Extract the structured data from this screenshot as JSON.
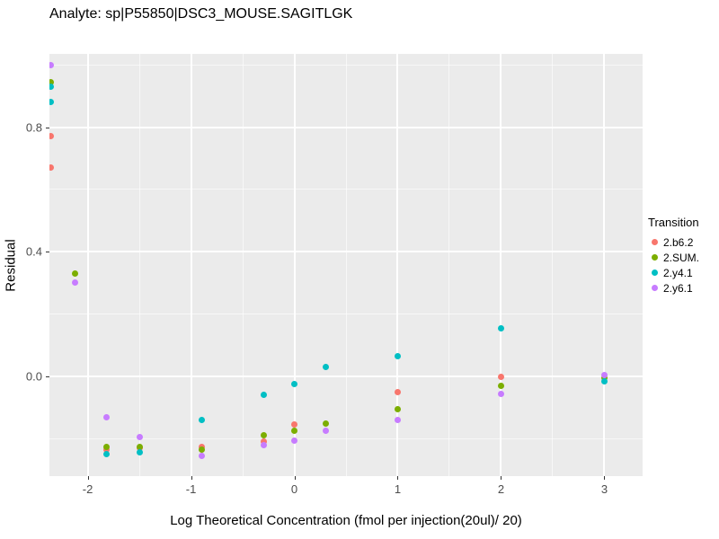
{
  "legend": {
    "title": "Transition"
  },
  "panel_style": {
    "background": "#EBEBEB",
    "grid_color": "#FFFFFF",
    "tick_text_color": "#4D4D4D"
  },
  "chart_data": {
    "type": "scatter",
    "title": "Analyte: sp|P55850|DSC3_MOUSE.SAGITLGK",
    "xlabel": "Log Theoretical Concentration (fmol per injection(20ul)/ 20)",
    "ylabel": "Residual",
    "xlim": [
      -2.37,
      3.37
    ],
    "ylim": [
      -0.32,
      1.035
    ],
    "grid": true,
    "legend_position": "right",
    "x_ticks": [
      -2,
      -1,
      0,
      1,
      2,
      3
    ],
    "x_tick_labels": [
      "-2",
      "-1",
      "0",
      "1",
      "2",
      "3"
    ],
    "x_minor_ticks": [
      -1.5,
      -0.5,
      0.5,
      1.5,
      2.5
    ],
    "y_ticks": [
      0.0,
      0.4,
      0.8
    ],
    "y_tick_labels": [
      "0.0",
      "0.4",
      "0.8"
    ],
    "y_minor_ticks": [
      -0.2,
      0.2,
      0.6,
      1.0
    ],
    "series": [
      {
        "name": "2.b6.2",
        "color": "#F8766D",
        "points": [
          [
            -2.355,
            0.77
          ],
          [
            -2.355,
            0.67
          ],
          [
            -1.82,
            -0.235
          ],
          [
            -1.5,
            -0.23
          ],
          [
            -0.9,
            -0.225
          ],
          [
            -0.3,
            -0.21
          ],
          [
            0.0,
            -0.155
          ],
          [
            1.0,
            -0.05
          ],
          [
            2.0,
            0.0
          ]
        ]
      },
      {
        "name": "2.SUM.",
        "color": "#7CAE00",
        "points": [
          [
            -2.355,
            0.945
          ],
          [
            -2.12,
            0.33
          ],
          [
            -1.82,
            -0.225
          ],
          [
            -1.5,
            -0.225
          ],
          [
            -0.9,
            -0.235
          ],
          [
            -0.3,
            -0.19
          ],
          [
            0.0,
            -0.175
          ],
          [
            0.3,
            -0.15
          ],
          [
            1.0,
            -0.105
          ],
          [
            2.0,
            -0.03
          ],
          [
            3.0,
            -0.005
          ]
        ]
      },
      {
        "name": "2.y4.1",
        "color": "#00BFC4",
        "points": [
          [
            -2.355,
            0.93
          ],
          [
            -2.355,
            0.88
          ],
          [
            -1.82,
            -0.25
          ],
          [
            -1.5,
            -0.245
          ],
          [
            -0.9,
            -0.14
          ],
          [
            -0.3,
            -0.06
          ],
          [
            0.0,
            -0.025
          ],
          [
            0.3,
            0.03
          ],
          [
            1.0,
            0.065
          ],
          [
            2.0,
            0.155
          ],
          [
            3.0,
            -0.015
          ]
        ]
      },
      {
        "name": "2.y6.1",
        "color": "#C77CFF",
        "points": [
          [
            -2.355,
            1.0
          ],
          [
            -2.12,
            0.3
          ],
          [
            -1.82,
            -0.13
          ],
          [
            -1.5,
            -0.195
          ],
          [
            -0.9,
            -0.255
          ],
          [
            -0.3,
            -0.22
          ],
          [
            0.0,
            -0.205
          ],
          [
            0.3,
            -0.175
          ],
          [
            1.0,
            -0.14
          ],
          [
            2.0,
            -0.055
          ],
          [
            3.0,
            0.005
          ]
        ]
      }
    ]
  }
}
